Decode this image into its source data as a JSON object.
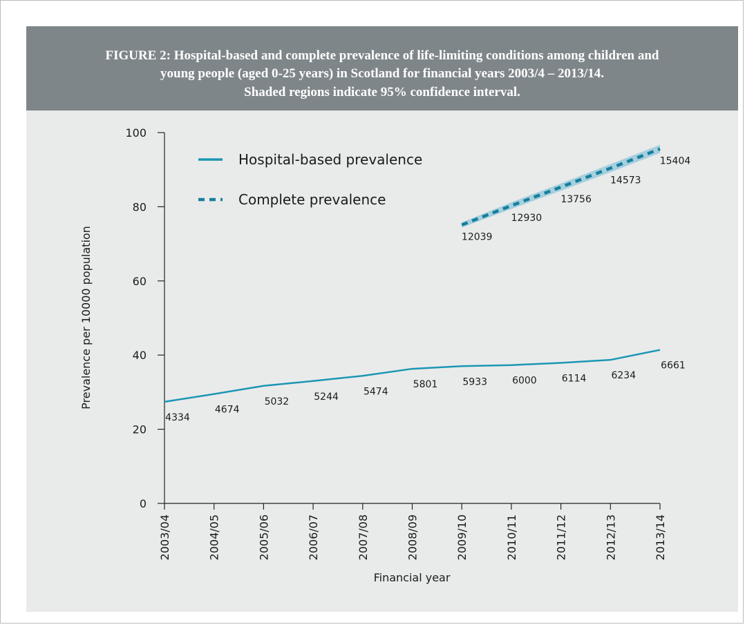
{
  "chart_data": {
    "type": "line",
    "title": [
      "FIGURE 2: Hospital-based and complete prevalence of life-limiting conditions among children and",
      "young people (aged 0-25 years) in Scotland for financial years 2003/4 – 2013/14."
    ],
    "subtitle": "Shaded regions indicate 95% confidence interval.",
    "x_label": "Financial year",
    "y_label": "Prevalence per 10000 population",
    "categories": [
      "2003/04",
      "2004/05",
      "2005/06",
      "2006/07",
      "2007/08",
      "2008/09",
      "2009/10",
      "2010/11",
      "2011/12",
      "2012/13",
      "2013/14"
    ],
    "series": [
      {
        "name": "Hospital-based prevalence",
        "color": "#1b96b3",
        "dash": false,
        "values": [
          27.4,
          29.5,
          31.7,
          33.0,
          34.4,
          36.3,
          37.0,
          37.3,
          37.9,
          38.7,
          41.4
        ],
        "point_labels": [
          4334,
          4674,
          5032,
          5244,
          5474,
          5801,
          5933,
          6000,
          6114,
          6234,
          6661
        ]
      },
      {
        "name": "Complete prevalence",
        "color": "#177f9c",
        "dash": true,
        "values": [
          null,
          null,
          null,
          null,
          null,
          null,
          75.1,
          80.3,
          85.3,
          90.4,
          95.6
        ],
        "ci_lower": [
          null,
          null,
          null,
          null,
          null,
          null,
          74.4,
          79.4,
          84.3,
          89.3,
          94.5
        ],
        "ci_upper": [
          null,
          null,
          null,
          null,
          null,
          null,
          75.8,
          81.2,
          86.3,
          91.5,
          96.7
        ],
        "ci_color": "#a6d0df",
        "point_labels": [
          null,
          null,
          null,
          null,
          null,
          null,
          12039,
          12930,
          13756,
          14573,
          15404
        ]
      }
    ],
    "ylim": [
      0,
      100
    ],
    "yticks": [
      0,
      20,
      40,
      60,
      80,
      100
    ],
    "legend": "upper left"
  }
}
